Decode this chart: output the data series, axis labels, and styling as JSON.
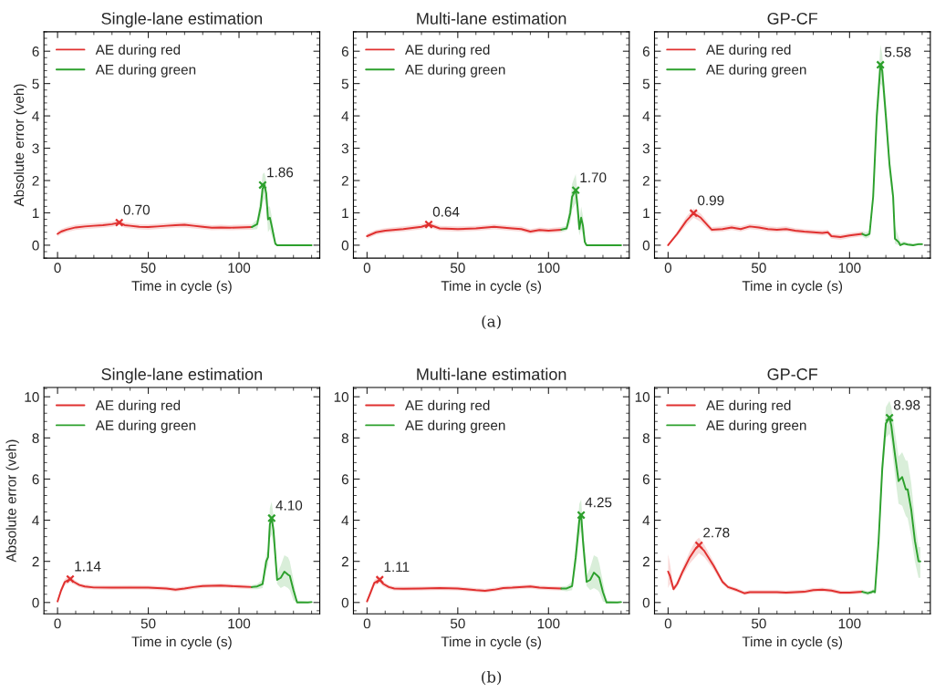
{
  "chart_data": [
    {
      "type": "line",
      "title": "Single-lane estimation",
      "xlabel": "Time in cycle (s)",
      "ylabel": "Absolute error (veh)",
      "xlim": [
        -7.5,
        144.5
      ],
      "xticks": [
        0,
        50,
        100
      ],
      "ylim": [
        -0.4,
        6.6
      ],
      "yticks": [
        0,
        1,
        2,
        3,
        4,
        5,
        6
      ],
      "grid": false,
      "legend": "top left",
      "marker": "none",
      "line_style": "solid",
      "series": [
        {
          "name": "AE during red",
          "color": "#e0302f",
          "x": [
            0,
            2,
            5,
            10,
            15,
            20,
            25,
            30,
            34,
            37,
            40,
            45,
            50,
            55,
            60,
            65,
            70,
            75,
            80,
            85,
            90,
            95,
            100,
            107
          ],
          "values": [
            0.35,
            0.42,
            0.48,
            0.55,
            0.58,
            0.6,
            0.62,
            0.65,
            0.7,
            0.62,
            0.6,
            0.57,
            0.56,
            0.58,
            0.6,
            0.62,
            0.63,
            0.6,
            0.57,
            0.54,
            0.55,
            0.54,
            0.55,
            0.56
          ],
          "lower": [
            0.27,
            0.34,
            0.4,
            0.47,
            0.5,
            0.52,
            0.54,
            0.57,
            0.62,
            0.54,
            0.52,
            0.49,
            0.48,
            0.5,
            0.52,
            0.54,
            0.55,
            0.52,
            0.49,
            0.46,
            0.47,
            0.46,
            0.47,
            0.48
          ],
          "upper": [
            0.43,
            0.5,
            0.56,
            0.63,
            0.66,
            0.68,
            0.7,
            0.73,
            0.78,
            0.7,
            0.68,
            0.65,
            0.64,
            0.66,
            0.68,
            0.7,
            0.71,
            0.68,
            0.65,
            0.62,
            0.63,
            0.62,
            0.63,
            0.64
          ]
        },
        {
          "name": "AE during green",
          "color": "#2ca02c",
          "x": [
            107,
            110,
            112,
            113,
            114,
            115,
            116,
            117,
            118,
            120,
            121,
            140
          ],
          "values": [
            0.56,
            0.65,
            1.2,
            1.75,
            1.86,
            1.6,
            0.8,
            0.85,
            0.6,
            0.05,
            0,
            0
          ],
          "lower": [
            0.48,
            0.5,
            0.9,
            1.3,
            1.45,
            1.2,
            0.4,
            0.5,
            0.3,
            0,
            0,
            0
          ],
          "upper": [
            0.64,
            0.8,
            1.6,
            2.2,
            2.25,
            2.0,
            1.2,
            1.2,
            0.9,
            0.1,
            0,
            0
          ]
        },
        {
          "type": "scatter",
          "color": "#e0302f",
          "marker": "cross",
          "x": [
            34
          ],
          "values": [
            0.7
          ]
        },
        {
          "type": "scatter",
          "color": "#2ca02c",
          "marker": "cross",
          "x": [
            113
          ],
          "values": [
            1.86
          ]
        }
      ],
      "annotations": [
        {
          "text": "0.70",
          "x": 34,
          "y": 0.7
        },
        {
          "text": "1.86",
          "x": 113,
          "y": 1.86
        }
      ]
    },
    {
      "type": "line",
      "title": "Multi-lane estimation",
      "xlabel": "Time in cycle (s)",
      "xlim": [
        -7.5,
        144.5
      ],
      "xticks": [
        0,
        50,
        100
      ],
      "ylim": [
        -0.4,
        6.6
      ],
      "yticks": [
        0,
        1,
        2,
        3,
        4,
        5,
        6
      ],
      "grid": false,
      "legend": "top left",
      "marker": "none",
      "line_style": "solid",
      "series": [
        {
          "name": "AE during red",
          "color": "#e0302f",
          "x": [
            0,
            5,
            10,
            20,
            30,
            34,
            40,
            50,
            60,
            70,
            80,
            85,
            90,
            95,
            100,
            107
          ],
          "values": [
            0.28,
            0.4,
            0.45,
            0.5,
            0.57,
            0.64,
            0.52,
            0.5,
            0.52,
            0.57,
            0.52,
            0.5,
            0.42,
            0.47,
            0.45,
            0.48
          ],
          "lower": [
            0.2,
            0.32,
            0.37,
            0.42,
            0.49,
            0.56,
            0.44,
            0.42,
            0.44,
            0.49,
            0.44,
            0.42,
            0.34,
            0.39,
            0.37,
            0.4
          ],
          "upper": [
            0.36,
            0.48,
            0.53,
            0.58,
            0.65,
            0.72,
            0.6,
            0.58,
            0.6,
            0.65,
            0.6,
            0.58,
            0.5,
            0.55,
            0.53,
            0.56
          ]
        },
        {
          "name": "AE during green",
          "color": "#2ca02c",
          "x": [
            107,
            110,
            112,
            113,
            115,
            116,
            117,
            118,
            119,
            120,
            121,
            140
          ],
          "values": [
            0.48,
            0.52,
            1.0,
            1.5,
            1.7,
            1.2,
            0.5,
            0.85,
            0.6,
            0.1,
            0,
            0
          ],
          "lower": [
            0.4,
            0.45,
            0.7,
            1.1,
            1.3,
            0.8,
            0.3,
            0.5,
            0.3,
            0,
            0,
            0
          ],
          "upper": [
            0.56,
            0.6,
            1.4,
            1.9,
            2.2,
            1.6,
            0.8,
            1.2,
            0.9,
            0.2,
            0,
            0
          ]
        },
        {
          "type": "scatter",
          "color": "#e0302f",
          "marker": "cross",
          "x": [
            34
          ],
          "values": [
            0.64
          ]
        },
        {
          "type": "scatter",
          "color": "#2ca02c",
          "marker": "cross",
          "x": [
            115
          ],
          "values": [
            1.7
          ]
        }
      ],
      "annotations": [
        {
          "text": "0.64",
          "x": 34,
          "y": 0.64
        },
        {
          "text": "1.70",
          "x": 115,
          "y": 1.7
        },
        "(a)"
      ]
    },
    {
      "type": "line",
      "title": "GP-CF",
      "xlabel": "Time in cycle (s)",
      "xlim": [
        -7.5,
        144.5
      ],
      "xticks": [
        0,
        50,
        100
      ],
      "ylim": [
        -0.4,
        6.6
      ],
      "yticks": [
        0,
        1,
        2,
        3,
        4,
        5,
        6
      ],
      "grid": false,
      "legend": "top left",
      "marker": "none",
      "line_style": "solid",
      "series": [
        {
          "name": "AE during red",
          "color": "#e0302f",
          "x": [
            0,
            5,
            10,
            14,
            18,
            22,
            24,
            30,
            35,
            40,
            45,
            50,
            55,
            60,
            65,
            70,
            75,
            80,
            85,
            88,
            90,
            95,
            100,
            107
          ],
          "values": [
            0,
            0.35,
            0.75,
            0.99,
            0.85,
            0.6,
            0.48,
            0.5,
            0.55,
            0.5,
            0.58,
            0.55,
            0.5,
            0.48,
            0.5,
            0.45,
            0.42,
            0.4,
            0.38,
            0.4,
            0.28,
            0.25,
            0.3,
            0.35
          ],
          "lower": [
            0,
            0.27,
            0.62,
            0.85,
            0.72,
            0.5,
            0.4,
            0.42,
            0.47,
            0.42,
            0.5,
            0.47,
            0.42,
            0.4,
            0.42,
            0.37,
            0.34,
            0.32,
            0.3,
            0.32,
            0.2,
            0.17,
            0.22,
            0.27
          ],
          "upper": [
            0.05,
            0.43,
            0.88,
            1.13,
            0.98,
            0.7,
            0.56,
            0.58,
            0.63,
            0.58,
            0.66,
            0.63,
            0.58,
            0.56,
            0.58,
            0.53,
            0.5,
            0.48,
            0.46,
            0.48,
            0.36,
            0.33,
            0.38,
            0.43
          ]
        },
        {
          "name": "AE during green",
          "color": "#2ca02c",
          "x": [
            107,
            109,
            111,
            113,
            115,
            117,
            118,
            120,
            122,
            124,
            125,
            127,
            128,
            130,
            132,
            135,
            138,
            140
          ],
          "values": [
            0.35,
            0.3,
            0.35,
            1.5,
            4.0,
            5.58,
            5.4,
            4.0,
            2.5,
            1.5,
            0.2,
            0.1,
            0.0,
            0.05,
            0.02,
            0.0,
            0.03,
            0.03
          ],
          "lower": [
            0.27,
            0.2,
            0.25,
            1.3,
            3.6,
            5.0,
            4.9,
            3.6,
            2.2,
            1.2,
            0.05,
            0,
            0,
            0,
            0,
            0,
            0,
            0
          ],
          "upper": [
            0.43,
            0.4,
            0.45,
            1.7,
            4.4,
            6.2,
            5.9,
            4.4,
            2.8,
            1.8,
            0.6,
            0.25,
            0.1,
            0.12,
            0.08,
            0.05,
            0.08,
            0.08
          ]
        },
        {
          "type": "scatter",
          "color": "#e0302f",
          "marker": "cross",
          "x": [
            14
          ],
          "values": [
            0.99
          ]
        },
        {
          "type": "scatter",
          "color": "#2ca02c",
          "marker": "cross",
          "x": [
            117
          ],
          "values": [
            5.58
          ]
        }
      ],
      "annotations": [
        {
          "text": "0.99",
          "x": 14,
          "y": 0.99
        },
        {
          "text": "5.58",
          "x": 117,
          "y": 5.58
        }
      ]
    },
    {
      "type": "line",
      "title": "Single-lane estimation",
      "xlabel": "Time in cycle (s)",
      "ylabel": "Absolute error (veh)",
      "xlim": [
        -7.5,
        144.5
      ],
      "xticks": [
        0,
        50,
        100
      ],
      "ylim": [
        -0.55,
        10.45
      ],
      "yticks": [
        0,
        2,
        4,
        6,
        8,
        10
      ],
      "grid": false,
      "legend": "top left",
      "marker": "none",
      "line_style": "solid",
      "series": [
        {
          "name": "AE during red",
          "color": "#e0302f",
          "x": [
            0,
            2,
            4,
            7,
            9,
            12,
            15,
            20,
            30,
            40,
            50,
            60,
            65,
            70,
            75,
            80,
            90,
            95,
            100,
            107
          ],
          "values": [
            0.05,
            0.6,
            1.0,
            1.14,
            1.0,
            0.85,
            0.78,
            0.73,
            0.72,
            0.73,
            0.72,
            0.68,
            0.62,
            0.68,
            0.75,
            0.8,
            0.82,
            0.8,
            0.78,
            0.75
          ],
          "lower": [
            0,
            0.45,
            0.85,
            0.98,
            0.88,
            0.75,
            0.68,
            0.63,
            0.62,
            0.63,
            0.62,
            0.58,
            0.52,
            0.58,
            0.65,
            0.7,
            0.72,
            0.7,
            0.68,
            0.65
          ],
          "upper": [
            0.15,
            0.75,
            1.15,
            1.3,
            1.12,
            0.95,
            0.88,
            0.83,
            0.82,
            0.83,
            0.82,
            0.78,
            0.72,
            0.78,
            0.85,
            0.9,
            0.92,
            0.9,
            0.88,
            0.85
          ]
        },
        {
          "name": "AE during green",
          "color": "#2ca02c",
          "x": [
            107,
            110,
            113,
            115,
            116,
            117,
            118,
            119,
            121,
            123,
            125,
            127,
            128,
            130,
            132,
            138,
            140
          ],
          "values": [
            0.75,
            0.78,
            0.9,
            2.0,
            2.2,
            3.8,
            4.1,
            3.5,
            1.1,
            1.2,
            1.5,
            1.35,
            1.3,
            0.6,
            0.0,
            0.0,
            0.02
          ],
          "lower": [
            0.65,
            0.65,
            0.7,
            1.6,
            1.8,
            3.1,
            3.3,
            2.8,
            0.9,
            0.7,
            0.8,
            0.7,
            0.6,
            0.1,
            0,
            0,
            0
          ],
          "upper": [
            0.85,
            0.9,
            1.1,
            2.4,
            2.6,
            4.6,
            4.9,
            4.2,
            1.4,
            1.8,
            2.3,
            2.2,
            2.0,
            1.1,
            0.1,
            0.05,
            0.06
          ]
        },
        {
          "type": "scatter",
          "color": "#e0302f",
          "marker": "cross",
          "x": [
            7
          ],
          "values": [
            1.14
          ]
        },
        {
          "type": "scatter",
          "color": "#2ca02c",
          "marker": "cross",
          "x": [
            118
          ],
          "values": [
            4.1
          ]
        }
      ],
      "annotations": [
        {
          "text": "1.14",
          "x": 7,
          "y": 1.14
        },
        {
          "text": "4.10",
          "x": 118,
          "y": 4.1
        }
      ]
    },
    {
      "type": "line",
      "title": "Multi-lane estimation",
      "xlabel": "Time in cycle (s)",
      "xlim": [
        -7.5,
        144.5
      ],
      "xticks": [
        0,
        50,
        100
      ],
      "ylim": [
        -0.55,
        10.45
      ],
      "yticks": [
        0,
        2,
        4,
        6,
        8,
        10
      ],
      "grid": false,
      "legend": "top left",
      "marker": "none",
      "line_style": "solid",
      "series": [
        {
          "name": "AE during red",
          "color": "#e0302f",
          "x": [
            0,
            2,
            4,
            7,
            9,
            12,
            15,
            20,
            30,
            40,
            50,
            60,
            65,
            70,
            75,
            80,
            90,
            95,
            100,
            107
          ],
          "values": [
            0.05,
            0.5,
            0.95,
            1.11,
            0.9,
            0.75,
            0.68,
            0.67,
            0.68,
            0.7,
            0.68,
            0.6,
            0.57,
            0.62,
            0.7,
            0.72,
            0.78,
            0.72,
            0.7,
            0.68
          ],
          "lower": [
            0,
            0.35,
            0.8,
            0.95,
            0.78,
            0.65,
            0.58,
            0.57,
            0.58,
            0.6,
            0.58,
            0.5,
            0.47,
            0.52,
            0.6,
            0.62,
            0.68,
            0.62,
            0.6,
            0.58
          ],
          "upper": [
            0.15,
            0.65,
            1.1,
            1.27,
            1.02,
            0.85,
            0.78,
            0.77,
            0.78,
            0.8,
            0.78,
            0.7,
            0.67,
            0.72,
            0.8,
            0.82,
            0.88,
            0.82,
            0.8,
            0.78
          ]
        },
        {
          "name": "AE during green",
          "color": "#2ca02c",
          "x": [
            107,
            110,
            113,
            115,
            117,
            118,
            119,
            121,
            123,
            125,
            127,
            128,
            130,
            132,
            138,
            140
          ],
          "values": [
            0.68,
            0.68,
            0.8,
            2.2,
            4.0,
            4.25,
            3.0,
            1.0,
            1.1,
            1.45,
            1.3,
            1.2,
            0.5,
            0.0,
            0.0,
            0.02
          ],
          "lower": [
            0.58,
            0.55,
            0.6,
            1.7,
            3.2,
            3.5,
            2.3,
            0.8,
            0.6,
            0.7,
            0.6,
            0.5,
            0.05,
            0,
            0,
            0
          ],
          "upper": [
            0.78,
            0.8,
            1.0,
            2.7,
            4.8,
            5.0,
            3.7,
            1.3,
            1.7,
            2.3,
            2.2,
            1.9,
            1.0,
            0.1,
            0.05,
            0.06
          ]
        },
        {
          "type": "scatter",
          "color": "#e0302f",
          "marker": "cross",
          "x": [
            7
          ],
          "values": [
            1.11
          ]
        },
        {
          "type": "scatter",
          "color": "#2ca02c",
          "marker": "cross",
          "x": [
            118
          ],
          "values": [
            4.25
          ]
        }
      ],
      "annotations": [
        {
          "text": "1.11",
          "x": 7,
          "y": 1.11
        },
        {
          "text": "4.25",
          "x": 118,
          "y": 4.25
        },
        "(b)"
      ]
    },
    {
      "type": "line",
      "title": "GP-CF",
      "xlabel": "Time in cycle (s)",
      "xlim": [
        -7.5,
        144.5
      ],
      "xticks": [
        0,
        50,
        100
      ],
      "ylim": [
        -0.55,
        10.45
      ],
      "yticks": [
        0,
        2,
        4,
        6,
        8,
        10
      ],
      "grid": false,
      "legend": "top left",
      "marker": "none",
      "line_style": "solid",
      "series": [
        {
          "name": "AE during red",
          "color": "#e0302f",
          "x": [
            0,
            1,
            3,
            5,
            8,
            12,
            15,
            17,
            20,
            25,
            30,
            33,
            38,
            42,
            45,
            50,
            55,
            60,
            65,
            70,
            75,
            80,
            85,
            90,
            95,
            100,
            107
          ],
          "values": [
            1.5,
            1.3,
            0.65,
            0.9,
            1.5,
            2.2,
            2.6,
            2.78,
            2.5,
            1.8,
            1.0,
            0.75,
            0.6,
            0.45,
            0.5,
            0.5,
            0.5,
            0.5,
            0.48,
            0.5,
            0.52,
            0.6,
            0.62,
            0.58,
            0.48,
            0.48,
            0.52
          ],
          "lower": [
            0.7,
            0.9,
            0.55,
            0.75,
            1.3,
            1.9,
            2.2,
            2.4,
            2.2,
            1.6,
            0.88,
            0.65,
            0.5,
            0.37,
            0.4,
            0.4,
            0.4,
            0.4,
            0.38,
            0.4,
            0.42,
            0.5,
            0.52,
            0.48,
            0.38,
            0.38,
            0.42
          ],
          "upper": [
            2.35,
            1.9,
            0.8,
            1.05,
            1.7,
            2.5,
            3.0,
            3.15,
            2.8,
            2.0,
            1.12,
            0.85,
            0.7,
            0.55,
            0.6,
            0.6,
            0.6,
            0.6,
            0.58,
            0.6,
            0.62,
            0.7,
            0.72,
            0.68,
            0.58,
            0.58,
            0.62
          ]
        },
        {
          "name": "AE during green",
          "color": "#2ca02c",
          "x": [
            107,
            110,
            112,
            113,
            114,
            116,
            118,
            120,
            122,
            123,
            125,
            127,
            129,
            131,
            132,
            134,
            136,
            138,
            139
          ],
          "values": [
            0.52,
            0.45,
            0.5,
            0.55,
            0.5,
            3.0,
            6.5,
            8.7,
            8.98,
            8.6,
            7.2,
            5.9,
            6.1,
            5.5,
            5.5,
            4.5,
            3.0,
            2.0,
            2.0
          ],
          "lower": [
            0.42,
            0.35,
            0.4,
            0.45,
            0.4,
            2.6,
            5.9,
            8.0,
            8.2,
            7.8,
            6.2,
            4.8,
            4.7,
            4.2,
            4.1,
            3.2,
            2.0,
            1.2,
            1.2
          ],
          "upper": [
            0.62,
            0.55,
            0.6,
            0.65,
            0.6,
            3.4,
            7.1,
            9.5,
            9.8,
            9.5,
            8.3,
            7.1,
            7.3,
            6.9,
            6.9,
            5.8,
            4.0,
            2.7,
            2.7
          ]
        },
        {
          "type": "scatter",
          "color": "#e0302f",
          "marker": "cross",
          "x": [
            17
          ],
          "values": [
            2.78
          ]
        },
        {
          "type": "scatter",
          "color": "#2ca02c",
          "marker": "cross",
          "x": [
            122
          ],
          "values": [
            8.98
          ]
        }
      ],
      "annotations": [
        {
          "text": "2.78",
          "x": 17,
          "y": 2.78
        },
        {
          "text": "8.98",
          "x": 122,
          "y": 8.98
        }
      ]
    }
  ]
}
